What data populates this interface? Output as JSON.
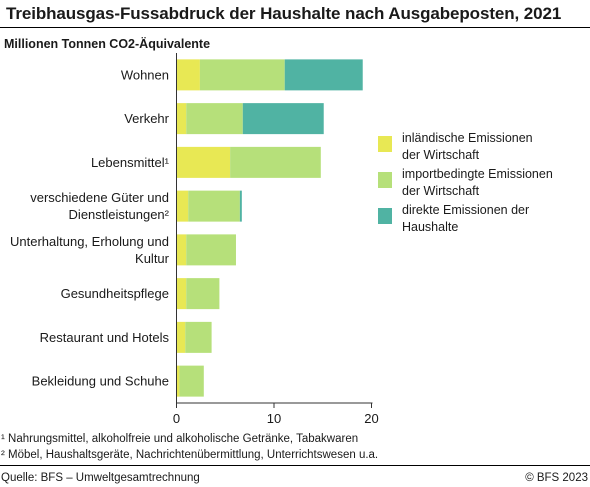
{
  "header": {
    "title": "Treibhausgas-Fussabdruck der Haushalte nach Ausgabeposten, 2021",
    "subtitle": "Millionen Tonnen CO2-Äquivalente"
  },
  "colors": {
    "inland": "#e8e854",
    "import": "#b6e07a",
    "direct": "#50b3a3",
    "axis": "#333333",
    "grid": "#cfcfcf"
  },
  "chart_data": {
    "type": "bar",
    "orientation": "horizontal",
    "stacked": true,
    "categories": [
      "Wohnen",
      "Verkehr",
      "Lebensmittel¹",
      "verschiedene Güter und Dienstleistungen²",
      "Unterhaltung, Erholung und Kultur",
      "Gesundheitspflege",
      "Restaurant und Hotels",
      "Bekleidung und Schuhe"
    ],
    "category_lines": [
      [
        "Wohnen"
      ],
      [
        "Verkehr"
      ],
      [
        "Lebensmittel¹"
      ],
      [
        "verschiedene Güter und",
        "Dienstleistungen²"
      ],
      [
        "Unterhaltung, Erholung und",
        "Kultur"
      ],
      [
        "Gesundheitspflege"
      ],
      [
        "Restaurant und Hotels"
      ],
      [
        "Bekleidung und Schuhe"
      ]
    ],
    "series": [
      {
        "name": "inländische Emissionen der Wirtschaft",
        "color": "#e8e854",
        "values": [
          2.4,
          1.0,
          5.5,
          1.2,
          1.0,
          1.0,
          0.9,
          0.3
        ]
      },
      {
        "name": "importbedingte Emissionen der Wirtschaft",
        "color": "#b6e07a",
        "values": [
          8.7,
          5.8,
          9.3,
          5.3,
          5.1,
          3.4,
          2.7,
          2.5
        ]
      },
      {
        "name": "direkte Emissionen der Haushalte",
        "color": "#50b3a3",
        "values": [
          8.0,
          8.3,
          0.0,
          0.2,
          0.0,
          0.0,
          0.0,
          0.0
        ]
      }
    ],
    "xlim": [
      0,
      20
    ],
    "xticks": [
      0,
      10,
      20
    ],
    "xlabel": "",
    "ylabel": "",
    "grid": false,
    "legend_position": "right"
  },
  "legend": {
    "items": [
      {
        "label_lines": [
          "inländische Emissionen",
          "der Wirtschaft"
        ],
        "color": "#e8e854"
      },
      {
        "label_lines": [
          "importbedingte Emissionen",
          "der Wirtschaft"
        ],
        "color": "#b6e07a"
      },
      {
        "label_lines": [
          "direkte Emissionen der",
          "Haushalte"
        ],
        "color": "#50b3a3"
      }
    ]
  },
  "footnotes": [
    "¹ Nahrungsmittel, alkoholfreie und alkoholische Getränke, Tabakwaren",
    "² Möbel, Haushaltsgeräte, Nachrichtenübermittlung, Unterrichtswesen u.a."
  ],
  "footer": {
    "source": "Quelle: BFS – Umweltgesamtrechnung",
    "copyright": "© BFS 2023"
  }
}
